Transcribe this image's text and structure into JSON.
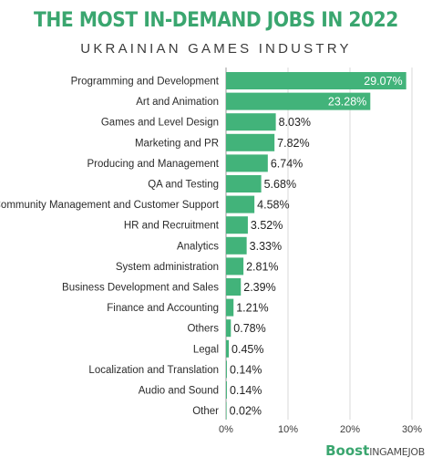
{
  "header": {
    "title": "THE MOST IN-DEMAND JOBS IN 2022",
    "subtitle": "UKRAINIAN GAMES INDUSTRY"
  },
  "brand": {
    "bold": "Boost",
    "rest": "INGAMEJOB"
  },
  "colors": {
    "bar": "#42b37a",
    "title": "#3aa66f",
    "grid": "#d9d9d9",
    "axis": "#9a9a9a"
  },
  "chart_data": {
    "type": "bar",
    "orientation": "horizontal",
    "categories": [
      "Programming and Development",
      "Art and Animation",
      "Games and Level Design",
      "Marketing and PR",
      "Producing and Management",
      "QA and Testing",
      "Community Management and Customer Support",
      "HR and Recruitment",
      "Analytics",
      "System administration",
      "Business Development and Sales",
      "Finance and Accounting",
      "Others",
      "Legal",
      "Localization and Translation",
      "Audio and Sound",
      "Other"
    ],
    "values": [
      29.07,
      23.28,
      8.03,
      7.82,
      6.74,
      5.68,
      4.58,
      3.52,
      3.33,
      2.81,
      2.39,
      1.21,
      0.78,
      0.45,
      0.14,
      0.14,
      0.02
    ],
    "value_labels": [
      "29.07%",
      "23.28%",
      "8.03%",
      "7.82%",
      "6.74%",
      "5.68%",
      "4.58%",
      "3.52%",
      "3.33%",
      "2.81%",
      "2.39%",
      "1.21%",
      "0.78%",
      "0.45%",
      "0.14%",
      "0.14%",
      "0.02%"
    ],
    "xlim": [
      0,
      30
    ],
    "xticks": [
      0,
      10,
      20,
      30
    ],
    "xtick_labels": [
      "0%",
      "10%",
      "20%",
      "30%"
    ],
    "grid": true,
    "legend": "none"
  }
}
